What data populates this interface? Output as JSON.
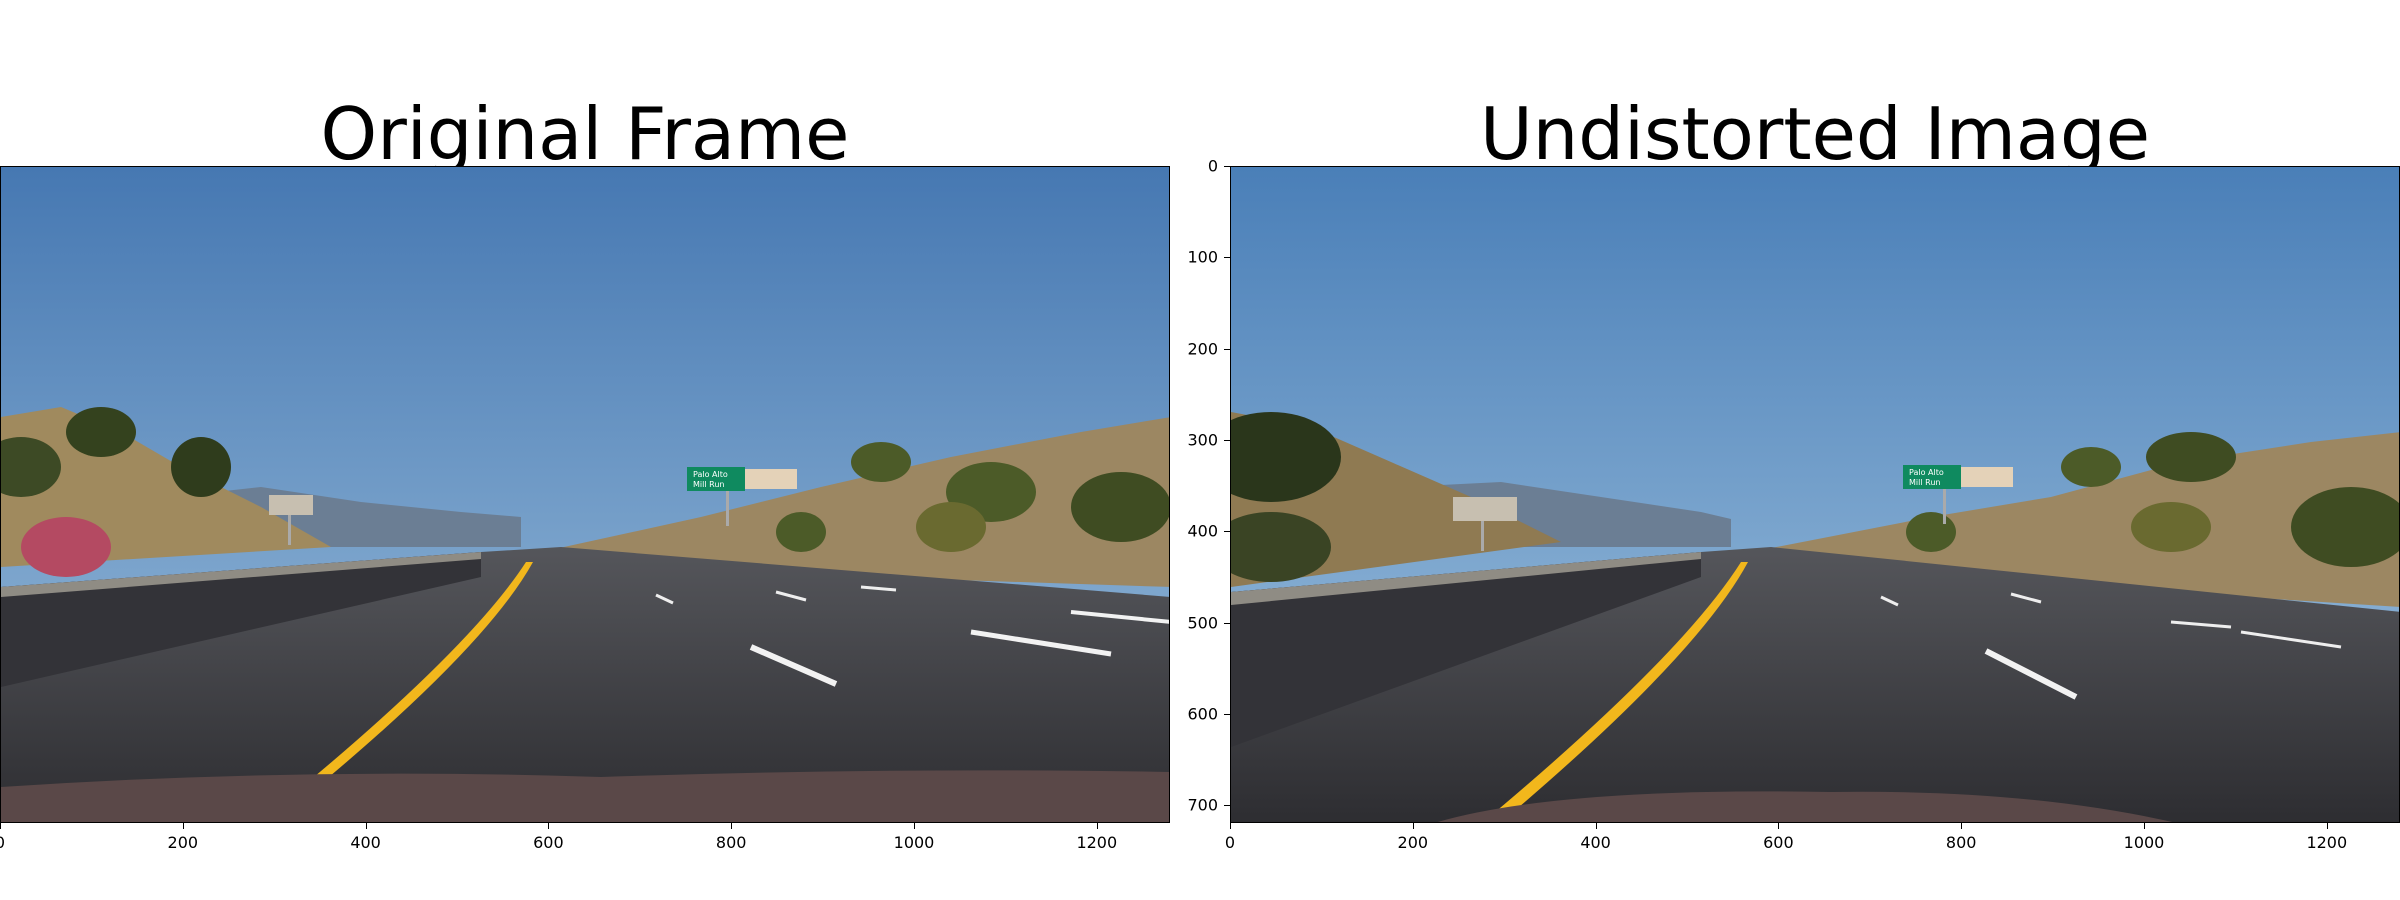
{
  "panels": [
    {
      "title": "Original Frame",
      "x_ticks": [
        "0",
        "200",
        "400",
        "600",
        "800",
        "1000",
        "1200"
      ],
      "y_ticks": []
    },
    {
      "title": "Undistorted Image",
      "x_ticks": [
        "0",
        "200",
        "400",
        "600",
        "800",
        "1000",
        "1200"
      ],
      "y_ticks": [
        "0",
        "100",
        "200",
        "300",
        "400",
        "500",
        "600",
        "700"
      ]
    }
  ],
  "image": {
    "description_icon": "road-scene-image",
    "width": 1280,
    "height": 720
  },
  "sign_text": [
    "Palo Alto",
    "Mill Run"
  ],
  "colors": {
    "sky_top": "#4a7fb8",
    "sky_bottom": "#8fb5d8",
    "road": "#3a3a3e",
    "yellow_line": "#f2b71c",
    "sign_green": "#0f8a5f"
  }
}
